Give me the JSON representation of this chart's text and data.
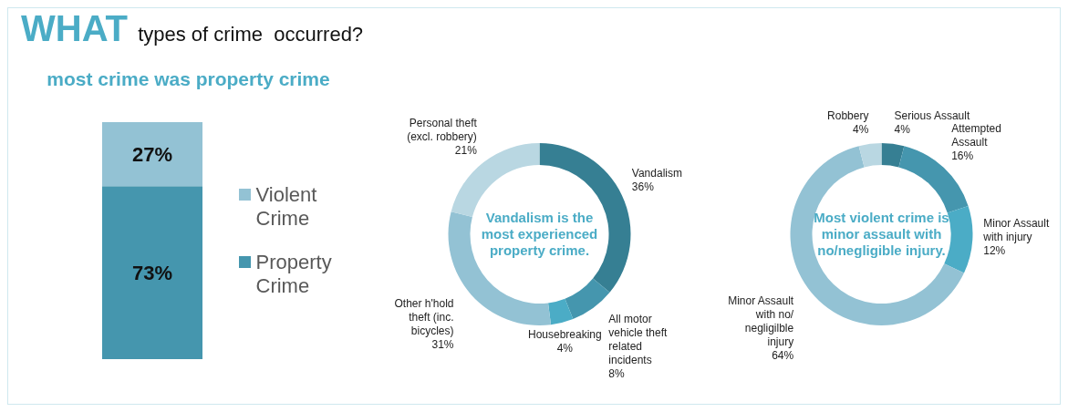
{
  "chart_data": [
    {
      "type": "bar",
      "title": "WHAT types of crime  occurred?",
      "subtitle": "most crime was property crime",
      "categories": [
        null
      ],
      "stacked": true,
      "legend": "right",
      "series": [
        {
          "name": "Property Crime",
          "color": "#4596ae",
          "values": [
            73
          ],
          "value_labels": [
            "73%"
          ]
        },
        {
          "name": "Violent Crime",
          "color": "#93c2d4",
          "values": [
            27
          ],
          "value_labels": [
            "27%"
          ]
        }
      ]
    },
    {
      "type": "donut",
      "categories": [
        "Vandalism",
        "All motor vehicle theft related incidents",
        "Housebreaking",
        "Other h'hold theft (inc. bicycles)",
        "Personal theft (excl. robbery)"
      ],
      "values": [
        36,
        8,
        4,
        31,
        21
      ],
      "colors": [
        "#367f93",
        "#4596ae",
        "#4bacc6",
        "#93c2d4",
        "#b9d7e2"
      ],
      "value_labels": [
        "36%",
        "8%",
        "4%",
        "31%",
        "21%"
      ],
      "annotations": [
        "Vandalism is the most experienced property crime."
      ]
    },
    {
      "type": "donut",
      "categories": [
        "Serious Assault",
        "Attempted Assault",
        "Minor Assault with injury",
        "Minor Assault with no/ negligilble injury",
        "Robbery"
      ],
      "values": [
        4,
        16,
        12,
        64,
        4
      ],
      "colors": [
        "#367f93",
        "#4596ae",
        "#4bacc6",
        "#93c2d4",
        "#b9d7e2"
      ],
      "value_labels": [
        "4%",
        "16%",
        "12%",
        "64%",
        "4%"
      ],
      "annotations": [
        "Most violent crime is minor assault with no/negligible injury."
      ]
    }
  ]
}
